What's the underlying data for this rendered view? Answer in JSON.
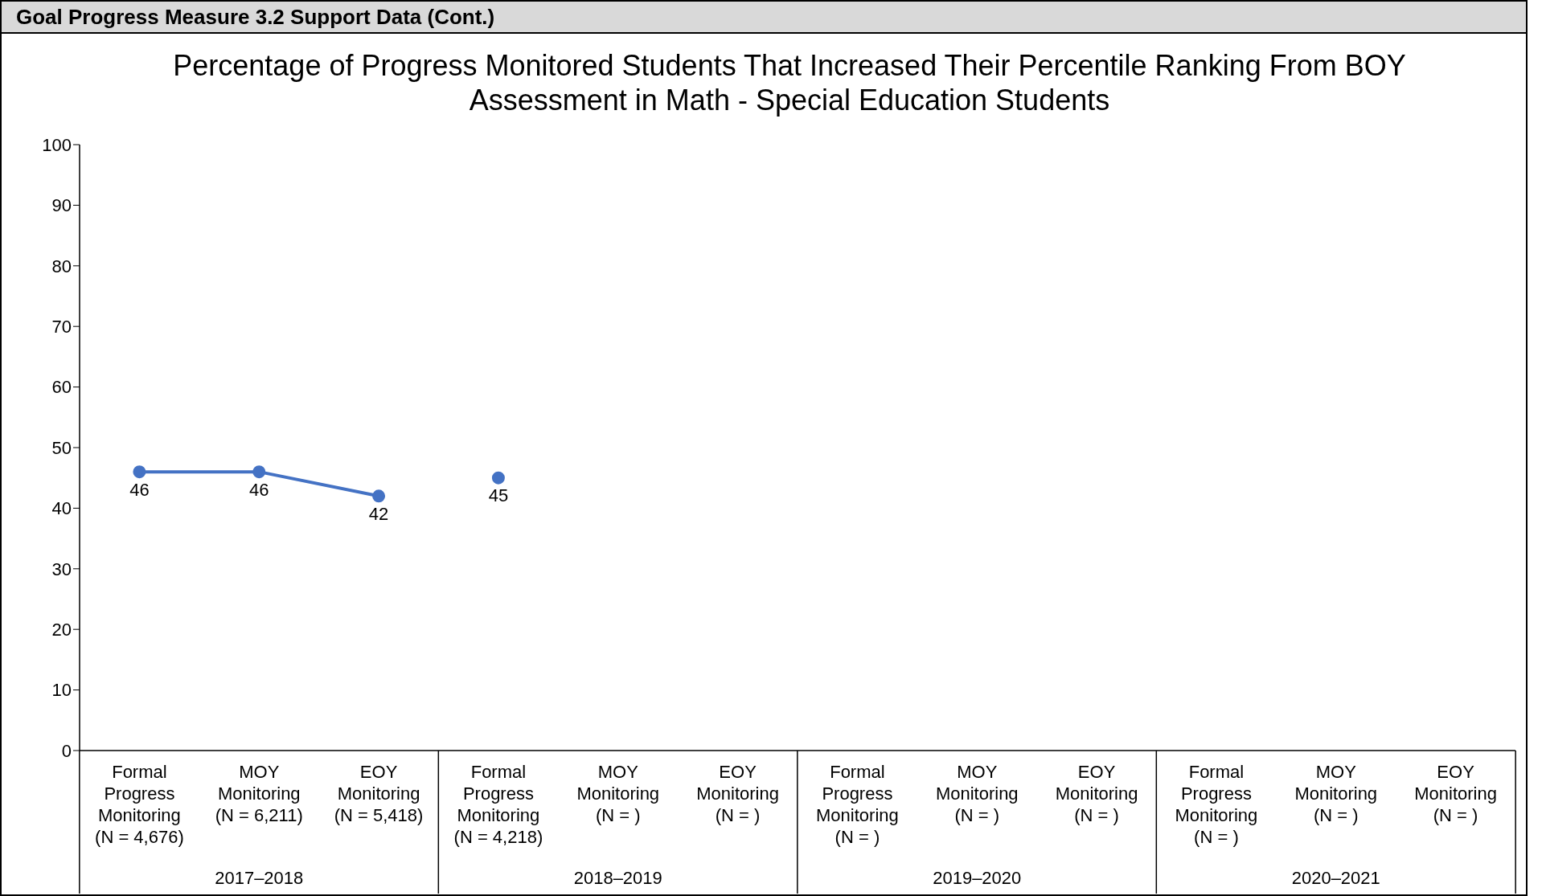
{
  "chart_data": {
    "type": "line",
    "title": "Percentage of Progress Monitored Students That Increased Their Percentile Ranking From BOY Assessment in Math - Special Education Students",
    "categories": [
      "Formal Progress Monitoring (N = 4,676)",
      "MOY Monitoring (N = 6,211)",
      "EOY Monitoring (N = 5,418)",
      "Formal Progress Monitoring (N = 4,218)",
      "MOY Monitoring (N = )",
      "EOY Monitoring (N = )",
      "Formal Progress Monitoring (N = )",
      "MOY Monitoring (N = )",
      "EOY Monitoring (N = )",
      "Formal Progress Monitoring (N = )",
      "MOY Monitoring (N = )",
      "EOY Monitoring (N = )"
    ],
    "series": [
      {
        "color": "#4472c4",
        "values": [
          46,
          46,
          42,
          null,
          null,
          null,
          null,
          null,
          null,
          null,
          null,
          null
        ]
      },
      {
        "color": "#4472c4",
        "values": [
          null,
          null,
          null,
          45,
          null,
          null,
          null,
          null,
          null,
          null,
          null,
          null
        ]
      }
    ],
    "annotations": [
      "Goal Progress Measure 3.2 Support Data (Cont.)",
      "2017–2018",
      "2018–2019",
      "2019–2020",
      "2020–2021"
    ],
    "ylim": [
      0,
      100
    ],
    "yticks": [
      0,
      10,
      20,
      30,
      40,
      50,
      60,
      70,
      80,
      90,
      100
    ],
    "grid": false,
    "marker": "circle",
    "line_style": "solid",
    "data_labels": true
  }
}
